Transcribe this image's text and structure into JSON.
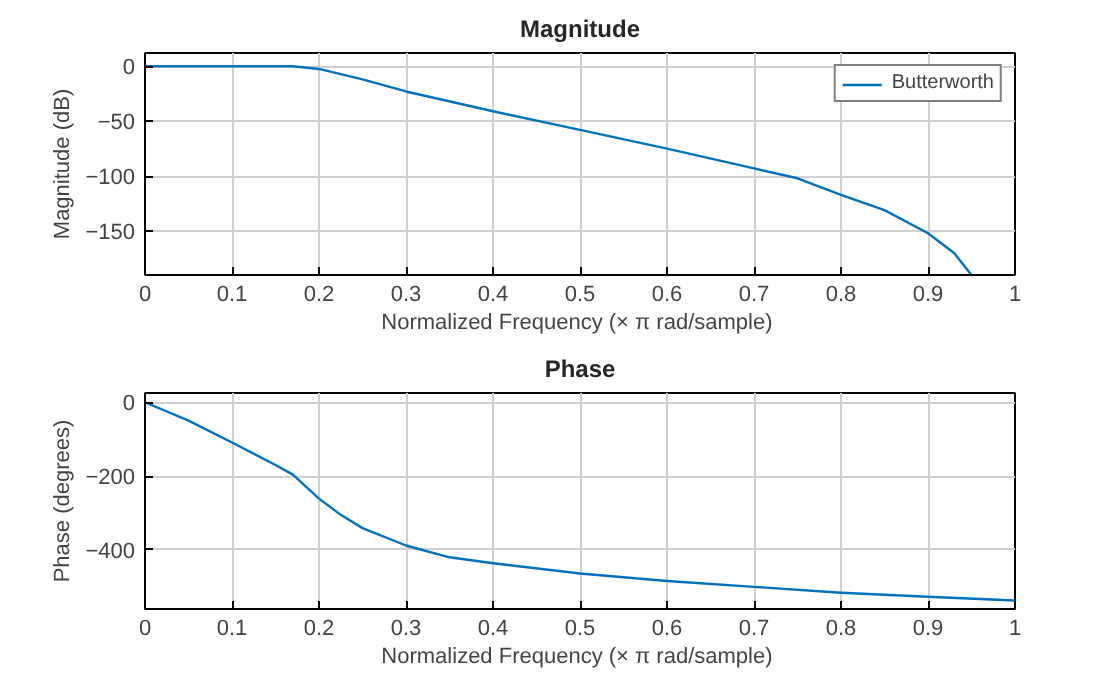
{
  "chart_data": [
    {
      "type": "line",
      "title": "Magnitude",
      "xlabel": "Normalized Frequency  (× π rad/sample)",
      "ylabel": "Magnitude (dB)",
      "xlim": [
        0,
        1
      ],
      "ylim": [
        -190,
        12
      ],
      "xticks": [
        0,
        0.1,
        0.2,
        0.3,
        0.4,
        0.5,
        0.6,
        0.7,
        0.8,
        0.9,
        1
      ],
      "yticks": [
        -150,
        -100,
        -50,
        0
      ],
      "grid": true,
      "legend": "top right",
      "line_style": "solid",
      "series": [
        {
          "name": "Butterworth",
          "color": "#0072bd",
          "x": [
            0,
            0.05,
            0.1,
            0.15,
            0.17,
            0.2,
            0.25,
            0.3,
            0.4,
            0.5,
            0.6,
            0.7,
            0.75,
            0.8,
            0.85,
            0.9,
            0.93,
            0.95
          ],
          "values": [
            0,
            0,
            0,
            0,
            0,
            -2.5,
            -12,
            -23,
            -41,
            -58,
            -75,
            -93,
            -102,
            -117,
            -131,
            -152,
            -170,
            -190
          ]
        }
      ]
    },
    {
      "type": "line",
      "title": "Phase",
      "xlabel": "Normalized Frequency  (× π rad/sample)",
      "ylabel": "Phase (degrees)",
      "xlim": [
        0,
        1
      ],
      "ylim": [
        -560,
        25
      ],
      "xticks": [
        0,
        0.1,
        0.2,
        0.3,
        0.4,
        0.5,
        0.6,
        0.7,
        0.8,
        0.9,
        1
      ],
      "yticks": [
        -400,
        -200,
        0
      ],
      "grid": true,
      "line_style": "solid",
      "series": [
        {
          "color": "#0072bd",
          "x": [
            0,
            0.05,
            0.1,
            0.15,
            0.17,
            0.2,
            0.225,
            0.25,
            0.3,
            0.35,
            0.4,
            0.5,
            0.6,
            0.7,
            0.8,
            0.9,
            1
          ],
          "values": [
            0,
            -50,
            -109,
            -170,
            -196,
            -261,
            -305,
            -341,
            -388,
            -420,
            -436,
            -464,
            -484,
            -500,
            -516,
            -527,
            -537
          ]
        }
      ]
    }
  ]
}
